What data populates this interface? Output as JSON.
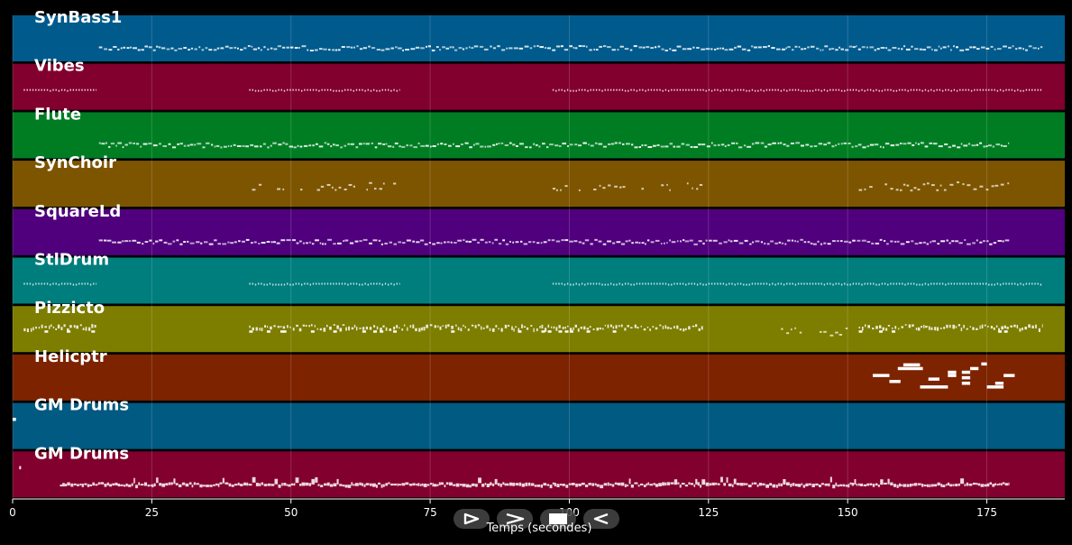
{
  "colors": {
    "background": "#000000",
    "grid": "#ffffff",
    "notes": "#ffffff",
    "track_label": "#ffffff",
    "control_bg": "#464646"
  },
  "tracks": [
    {
      "name": "SynBass1",
      "color": "#005a8c"
    },
    {
      "name": "Vibes",
      "color": "#82002d"
    },
    {
      "name": "Flute",
      "color": "#007d23"
    },
    {
      "name": "SynChoir",
      "color": "#7d5500"
    },
    {
      "name": "SquareLd",
      "color": "#50007d"
    },
    {
      "name": "StlDrum",
      "color": "#007d7d"
    },
    {
      "name": "Pizzicto",
      "color": "#7d7d00"
    },
    {
      "name": "Helicptr",
      "color": "#7d2300"
    },
    {
      "name": "GM Drums",
      "color": "#005a82"
    },
    {
      "name": "GM Drums",
      "color": "#82002d"
    }
  ],
  "axis": {
    "label": "Temps (secondes)",
    "xlim": [
      0,
      189
    ],
    "ticks": [
      0,
      25,
      50,
      75,
      100,
      125,
      150,
      175
    ]
  },
  "note_regions": [
    {
      "track": 0,
      "start": 15.5,
      "end": 185,
      "style": "dense"
    },
    {
      "track": 1,
      "start": 2,
      "end": 15,
      "style": "dots"
    },
    {
      "track": 1,
      "start": 42.5,
      "end": 69.5,
      "style": "dots"
    },
    {
      "track": 1,
      "start": 97,
      "end": 185,
      "style": "dots"
    },
    {
      "track": 2,
      "start": 15.5,
      "end": 179,
      "style": "dense"
    },
    {
      "track": 3,
      "start": 43,
      "end": 70,
      "style": "sparse"
    },
    {
      "track": 3,
      "start": 97,
      "end": 124,
      "style": "sparse"
    },
    {
      "track": 3,
      "start": 152,
      "end": 179,
      "style": "sparse"
    },
    {
      "track": 4,
      "start": 15.5,
      "end": 179,
      "style": "dense"
    },
    {
      "track": 5,
      "start": 2,
      "end": 15,
      "style": "dots"
    },
    {
      "track": 5,
      "start": 42.5,
      "end": 69.5,
      "style": "dots"
    },
    {
      "track": 5,
      "start": 97,
      "end": 185,
      "style": "dots"
    },
    {
      "track": 6,
      "start": 2,
      "end": 15,
      "style": "pizz"
    },
    {
      "track": 6,
      "start": 42.5,
      "end": 124,
      "style": "pizz"
    },
    {
      "track": 6,
      "start": 138,
      "end": 150,
      "style": "sparse"
    },
    {
      "track": 6,
      "start": 152,
      "end": 185,
      "style": "pizz"
    },
    {
      "track": 9,
      "start": 8.5,
      "end": 179,
      "style": "drums"
    }
  ],
  "note_blocks": [
    {
      "track": 7,
      "start": 154.5,
      "end": 157.5,
      "pitch": 0.55
    },
    {
      "track": 7,
      "start": 157.5,
      "end": 159.5,
      "pitch": 0.42
    },
    {
      "track": 7,
      "start": 159,
      "end": 163.5,
      "pitch": 0.7
    },
    {
      "track": 7,
      "start": 160,
      "end": 163,
      "pitch": 0.78
    },
    {
      "track": 7,
      "start": 163,
      "end": 168,
      "pitch": 0.3
    },
    {
      "track": 7,
      "start": 164.5,
      "end": 166.5,
      "pitch": 0.47
    },
    {
      "track": 7,
      "start": 168,
      "end": 169.5,
      "pitch": 0.55
    },
    {
      "track": 7,
      "start": 168,
      "end": 169.5,
      "pitch": 0.62
    },
    {
      "track": 7,
      "start": 170.5,
      "end": 172,
      "pitch": 0.38
    },
    {
      "track": 7,
      "start": 170.5,
      "end": 172,
      "pitch": 0.5
    },
    {
      "track": 7,
      "start": 170.5,
      "end": 172,
      "pitch": 0.62
    },
    {
      "track": 7,
      "start": 172,
      "end": 173.5,
      "pitch": 0.7
    },
    {
      "track": 7,
      "start": 174,
      "end": 175,
      "pitch": 0.8
    },
    {
      "track": 7,
      "start": 175,
      "end": 178,
      "pitch": 0.3
    },
    {
      "track": 7,
      "start": 176.5,
      "end": 178,
      "pitch": 0.38
    },
    {
      "track": 7,
      "start": 178,
      "end": 180,
      "pitch": 0.55
    },
    {
      "track": 8,
      "start": 0,
      "end": 0.6,
      "pitch": 0.65
    },
    {
      "track": 9,
      "start": 1.2,
      "end": 1.5,
      "pitch": 0.65
    }
  ],
  "controls": [
    {
      "name": "play-button",
      "icon": "play-outline-icon"
    },
    {
      "name": "fast-forward-button",
      "icon": "chevron-right-icon"
    },
    {
      "name": "stop-button",
      "icon": "stop-icon"
    },
    {
      "name": "rewind-button",
      "icon": "rewind-outline-icon"
    }
  ]
}
